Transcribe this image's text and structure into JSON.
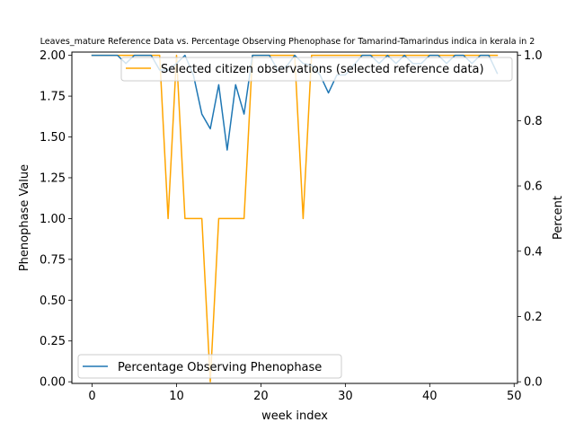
{
  "chart_data": {
    "type": "line",
    "title": "Leaves_mature Reference Data vs. Percentage Observing Phenophase for Tamarind-Tamarindus indica in kerala in 2",
    "xlabel": "week index",
    "ylabel_left": "Phenophase Value",
    "ylabel_right": "Percent",
    "xlim": [
      -2.4,
      50.4
    ],
    "ylim_left": [
      -0.01,
      2.02
    ],
    "ylim_right": [
      -0.005,
      1.01
    ],
    "xticks": [
      0,
      10,
      20,
      30,
      40,
      50
    ],
    "yticks_left": [
      0.0,
      0.25,
      0.5,
      0.75,
      1.0,
      1.25,
      1.5,
      1.75,
      2.0
    ],
    "yticks_right": [
      0.0,
      0.2,
      0.4,
      0.6,
      0.8,
      1.0
    ],
    "xtick_labels": [
      "0",
      "10",
      "20",
      "30",
      "40",
      "50"
    ],
    "ytick_labels_left": [
      "0.00",
      "0.25",
      "0.50",
      "0.75",
      "1.00",
      "1.25",
      "1.50",
      "1.75",
      "2.00"
    ],
    "ytick_labels_right": [
      "0.0",
      "0.2",
      "0.4",
      "0.6",
      "0.8",
      "1.0"
    ],
    "grid": false,
    "series": [
      {
        "name": "Selected citizen observations (selected reference data)",
        "axis": "left",
        "color": "#ffa500",
        "legend_position": "upper-right",
        "x": [
          0,
          1,
          2,
          3,
          4,
          5,
          6,
          7,
          8,
          9,
          10,
          11,
          12,
          13,
          14,
          15,
          16,
          17,
          18,
          19,
          20,
          21,
          22,
          23,
          24,
          25,
          26,
          27,
          28,
          29,
          30,
          31,
          32,
          33,
          34,
          35,
          36,
          37,
          38,
          39,
          40,
          41,
          42,
          43,
          44,
          45,
          46,
          47,
          48
        ],
        "values": [
          2,
          2,
          2,
          2,
          2,
          2,
          2,
          2,
          2,
          1,
          2,
          1,
          1,
          1,
          0,
          1,
          1,
          1,
          1,
          2,
          2,
          2,
          2,
          2,
          2,
          1,
          2,
          2,
          2,
          2,
          2,
          2,
          2,
          2,
          2,
          2,
          2,
          2,
          2,
          2,
          2,
          2,
          2,
          2,
          2,
          2,
          2,
          2,
          2
        ]
      },
      {
        "name": "Percentage Observing Phenophase",
        "axis": "right",
        "color": "#1f77b4",
        "legend_position": "lower-left",
        "x": [
          0,
          1,
          2,
          3,
          4,
          5,
          6,
          7,
          8,
          9,
          10,
          11,
          12,
          13,
          14,
          15,
          16,
          17,
          18,
          19,
          20,
          21,
          22,
          23,
          24,
          25,
          26,
          27,
          28,
          29,
          30,
          31,
          32,
          33,
          34,
          35,
          36,
          37,
          38,
          39,
          40,
          41,
          42,
          43,
          44,
          45,
          46,
          47,
          48
        ],
        "values": [
          1.0,
          1.0,
          1.0,
          1.0,
          0.975,
          1.0,
          1.0,
          1.0,
          0.955,
          0.955,
          0.975,
          1.0,
          0.94,
          0.82,
          0.775,
          0.91,
          0.71,
          0.91,
          0.82,
          1.0,
          1.0,
          1.0,
          0.955,
          0.965,
          1.0,
          0.975,
          0.97,
          0.94,
          0.885,
          0.94,
          0.94,
          0.97,
          1.0,
          1.0,
          0.975,
          1.0,
          0.975,
          1.0,
          0.975,
          0.975,
          1.0,
          1.0,
          0.975,
          1.0,
          1.0,
          0.975,
          1.0,
          1.0,
          0.945
        ]
      }
    ]
  }
}
